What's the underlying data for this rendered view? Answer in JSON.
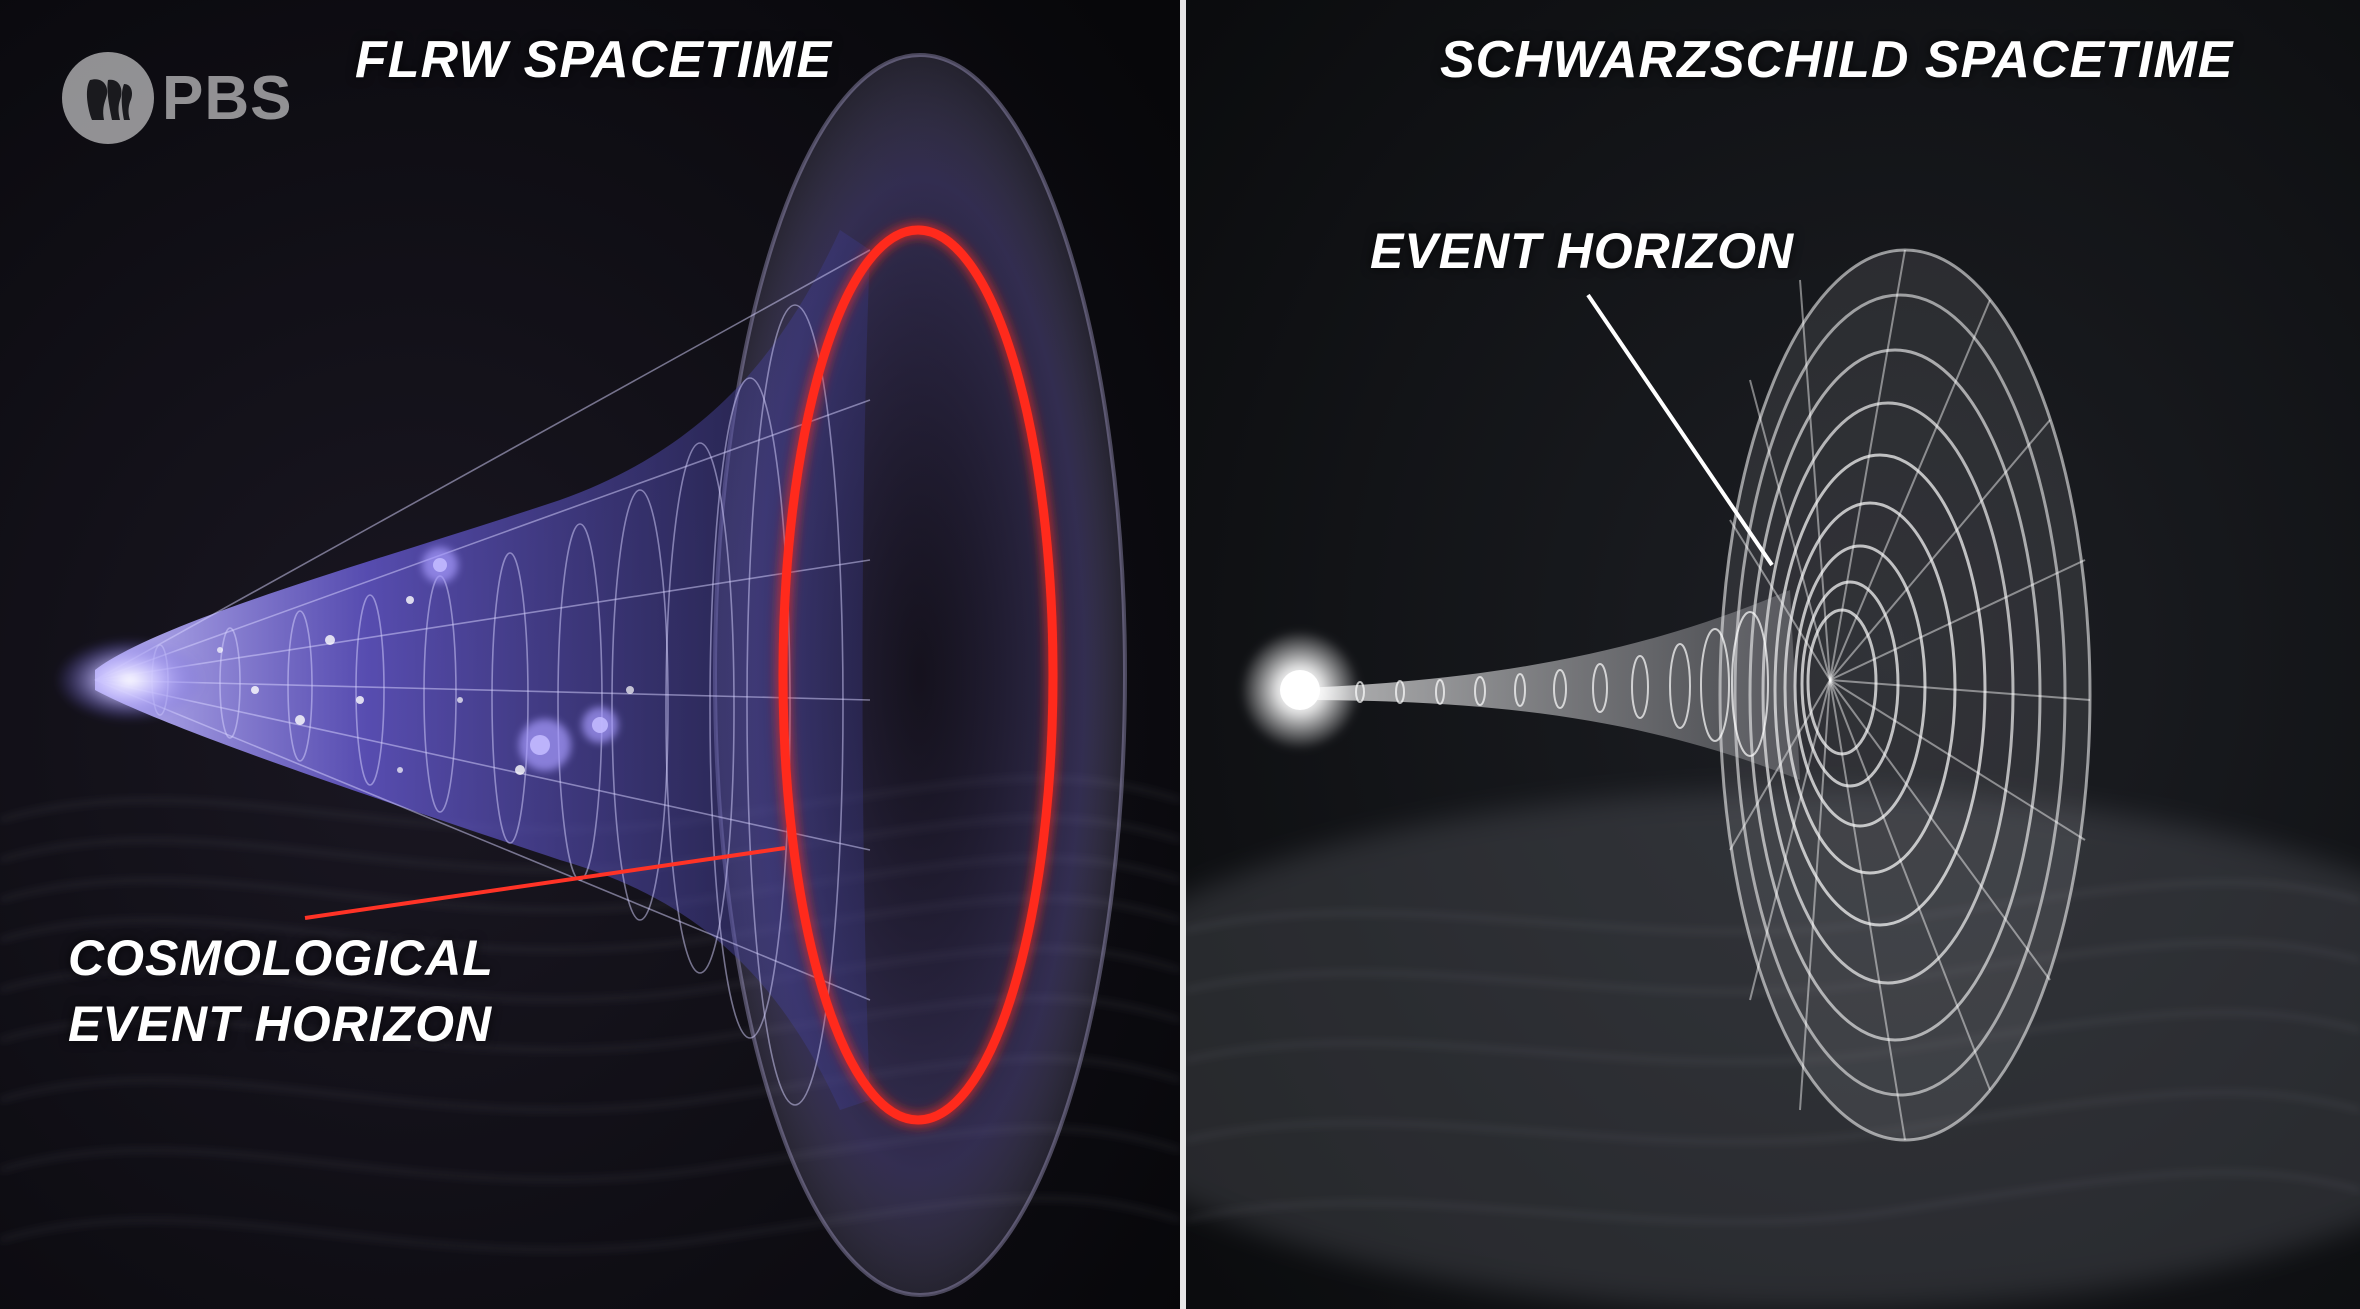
{
  "titles": {
    "left": "FLRW SPACETIME",
    "right": "SCHWARZSCHILD SPACETIME"
  },
  "labels": {
    "event_horizon": "EVENT HORIZON",
    "cosmological_line1": "COSMOLOGICAL",
    "cosmological_line2": "EVENT HORIZON"
  },
  "logo": {
    "text": "PBS",
    "icon": "pbs-heads-icon"
  },
  "colors": {
    "background": "#0c0c0e",
    "flrw_glow": "#7a6cff",
    "horizon_red": "#ff2a1e",
    "schwarzschild_white": "#ffffff",
    "divider": "#e6e6e6"
  }
}
